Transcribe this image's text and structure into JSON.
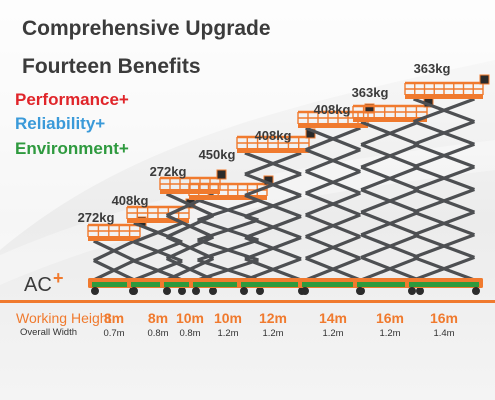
{
  "headline": {
    "line1": "Comprehensive Upgrade",
    "line2": "Fourteen Benefits"
  },
  "benefits": [
    {
      "text": "Performance+",
      "color": "#e0252a"
    },
    {
      "text": "Reliability+",
      "color": "#3a9ad9"
    },
    {
      "text": "Environment+",
      "color": "#2f9a3f"
    }
  ],
  "power": {
    "label": "AC",
    "plus": "+",
    "plus_color": "#f07a2e"
  },
  "specs": {
    "working_height_label": "Working Height",
    "overall_width_label": "Overall Width",
    "label_color": "#f07a2e"
  },
  "lifts": [
    {
      "capacity": "272kg",
      "working_height": "8m",
      "overall_width": "0.7m"
    },
    {
      "capacity": "408kg",
      "working_height": "8m",
      "overall_width": "0.8m"
    },
    {
      "capacity": "272kg",
      "working_height": "10m",
      "overall_width": "0.8m"
    },
    {
      "capacity": "450kg",
      "working_height": "10m",
      "overall_width": "1.2m"
    },
    {
      "capacity": "408kg",
      "working_height": "12m",
      "overall_width": "1.2m"
    },
    {
      "capacity": "408kg",
      "working_height": "14m",
      "overall_width": "1.2m"
    },
    {
      "capacity": "363kg",
      "working_height": "16m",
      "overall_width": "1.2m"
    },
    {
      "capacity": "363kg",
      "working_height": "16m",
      "overall_width": "1.4m"
    }
  ],
  "colors": {
    "title": "#3b3b3b",
    "accent_orange": "#f07a2e",
    "scissor_gray": "#4d4f52",
    "base_green": "#2e9a3d"
  }
}
